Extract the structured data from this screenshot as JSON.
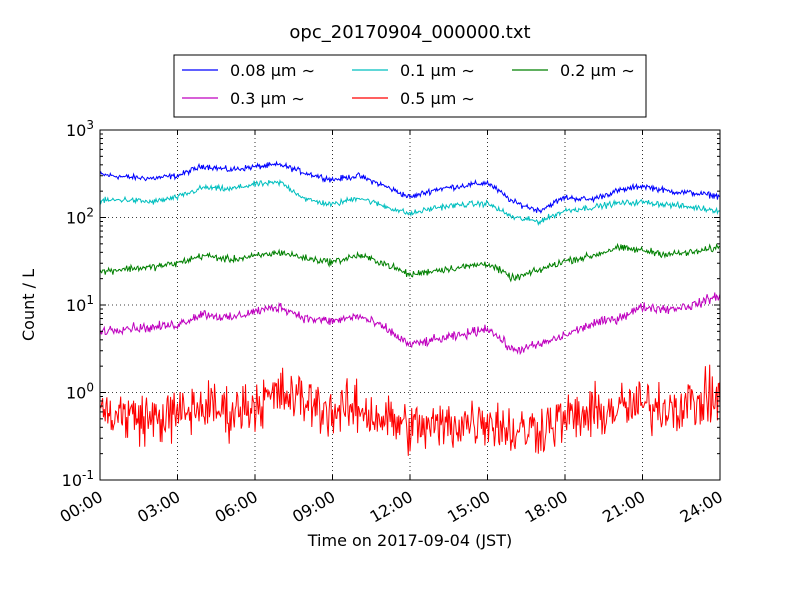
{
  "chart_data": {
    "type": "line",
    "title": "opc_20170904_000000.txt",
    "xlabel": "Time on 2017-09-04 (JST)",
    "ylabel": "Count / L",
    "xlim": [
      "2017-09-04 00:00",
      "2017-09-05 00:00"
    ],
    "ylim": [
      0.1,
      1000
    ],
    "yscale": "log",
    "grid": true,
    "legend_position": "top",
    "x_ticks": [
      "00:00",
      "03:00",
      "06:00",
      "09:00",
      "12:00",
      "15:00",
      "18:00",
      "21:00",
      "24:00"
    ],
    "y_ticks": [
      {
        "base": "10",
        "exp": "-1",
        "value": 0.1
      },
      {
        "base": "10",
        "exp": "0",
        "value": 1
      },
      {
        "base": "10",
        "exp": "1",
        "value": 10
      },
      {
        "base": "10",
        "exp": "2",
        "value": 100
      },
      {
        "base": "10",
        "exp": "3",
        "value": 1000
      }
    ],
    "x_hours": [
      0,
      1,
      2,
      3,
      4,
      5,
      6,
      7,
      8,
      9,
      10,
      11,
      12,
      13,
      14,
      15,
      16,
      17,
      18,
      19,
      20,
      21,
      22,
      23,
      24
    ],
    "series": [
      {
        "name": "0.08 μm ∼",
        "color": "#0000ff",
        "noise": 0.05,
        "values": [
          310,
          290,
          280,
          300,
          390,
          350,
          380,
          400,
          320,
          270,
          300,
          230,
          170,
          210,
          230,
          250,
          150,
          120,
          170,
          160,
          200,
          230,
          200,
          190,
          175
        ]
      },
      {
        "name": "0.1 μm ∼",
        "color": "#00bfbf",
        "noise": 0.05,
        "values": [
          155,
          160,
          150,
          170,
          220,
          210,
          240,
          250,
          160,
          140,
          170,
          135,
          110,
          130,
          140,
          145,
          100,
          90,
          120,
          130,
          145,
          150,
          140,
          130,
          120
        ]
      },
      {
        "name": "0.2 μm ∼",
        "color": "#008000",
        "noise": 0.06,
        "values": [
          24,
          26,
          27,
          30,
          37,
          33,
          36,
          40,
          34,
          31,
          37,
          30,
          22,
          25,
          27,
          30,
          20,
          25,
          32,
          36,
          45,
          42,
          38,
          40,
          46
        ]
      },
      {
        "name": "0.3 μm ∼",
        "color": "#bf00bf",
        "noise": 0.08,
        "values": [
          5,
          5.5,
          5.5,
          6,
          8,
          7,
          8.5,
          9.5,
          7,
          6.5,
          7.5,
          5.5,
          3.5,
          4,
          4.5,
          5.5,
          3,
          3.5,
          4.5,
          6,
          7,
          9.5,
          9,
          10,
          13
        ]
      },
      {
        "name": "0.5 μm ∼",
        "color": "#ff0000",
        "noise": 0.45,
        "values": [
          0.6,
          0.55,
          0.5,
          0.55,
          0.7,
          0.6,
          0.75,
          0.95,
          0.8,
          0.6,
          0.65,
          0.5,
          0.4,
          0.4,
          0.45,
          0.5,
          0.35,
          0.4,
          0.5,
          0.55,
          0.65,
          0.7,
          0.7,
          0.75,
          0.9
        ]
      }
    ]
  }
}
